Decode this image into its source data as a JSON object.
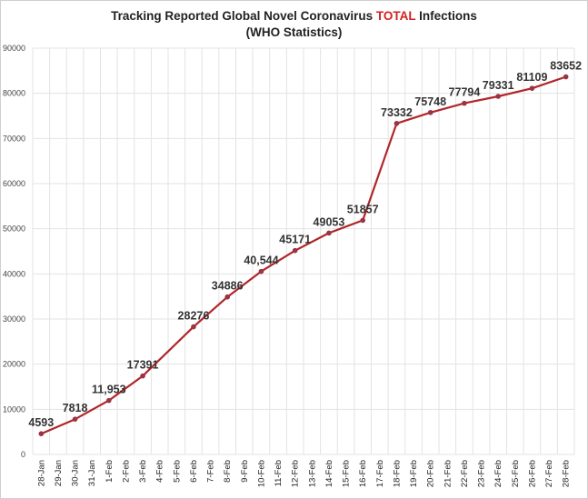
{
  "chart_data": {
    "type": "line",
    "title_pre": "Tracking Reported Global Novel Coronavirus ",
    "title_highlight": "TOTAL",
    "title_post": " Infections",
    "subtitle": "(WHO Statistics)",
    "highlight_color": "#d62020",
    "line_color": "#b0262a",
    "ylim": [
      0,
      90000
    ],
    "yticks": [
      "0",
      "10000",
      "20000",
      "30000",
      "40000",
      "50000",
      "60000",
      "70000",
      "80000",
      "90000"
    ],
    "categories": [
      "28-Jan",
      "29-Jan",
      "30-Jan",
      "31-Jan",
      "1-Feb",
      "2-Feb",
      "3-Feb",
      "4-Feb",
      "5-Feb",
      "6-Feb",
      "7-Feb",
      "8-Feb",
      "9-Feb",
      "10-Feb",
      "11-Feb",
      "12-Feb",
      "13-Feb",
      "14-Feb",
      "15-Feb",
      "16-Feb",
      "17-Feb",
      "18-Feb",
      "19-Feb",
      "20-Feb",
      "21-Feb",
      "22-Feb",
      "23-Feb",
      "24-Feb",
      "25-Feb",
      "26-Feb",
      "27-Feb",
      "28-Feb"
    ],
    "points": [
      {
        "cat": "28-Jan",
        "value": 4593,
        "label": "4593"
      },
      {
        "cat": "30-Jan",
        "value": 7818,
        "label": "7818"
      },
      {
        "cat": "1-Feb",
        "value": 11953,
        "label": "11,953"
      },
      {
        "cat": "3-Feb",
        "value": 17391,
        "label": "17391"
      },
      {
        "cat": "6-Feb",
        "value": 28276,
        "label": "28276"
      },
      {
        "cat": "8-Feb",
        "value": 34886,
        "label": "34886"
      },
      {
        "cat": "10-Feb",
        "value": 40544,
        "label": "40,544"
      },
      {
        "cat": "12-Feb",
        "value": 45171,
        "label": "45171"
      },
      {
        "cat": "14-Feb",
        "value": 49053,
        "label": "49053"
      },
      {
        "cat": "16-Feb",
        "value": 51857,
        "label": "51857"
      },
      {
        "cat": "18-Feb",
        "value": 73332,
        "label": "73332"
      },
      {
        "cat": "20-Feb",
        "value": 75748,
        "label": "75748"
      },
      {
        "cat": "22-Feb",
        "value": 77794,
        "label": "77794"
      },
      {
        "cat": "24-Feb",
        "value": 79331,
        "label": "79331"
      },
      {
        "cat": "26-Feb",
        "value": 81109,
        "label": "81109"
      },
      {
        "cat": "28-Feb",
        "value": 83652,
        "label": "83652"
      }
    ]
  }
}
